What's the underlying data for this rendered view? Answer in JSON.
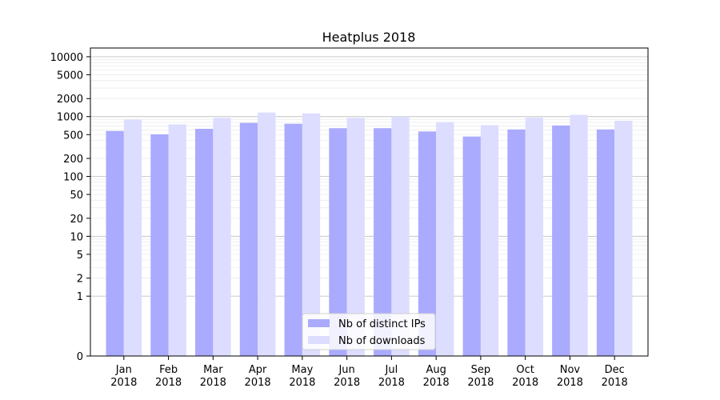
{
  "chart_data": {
    "type": "bar",
    "title": "Heatplus 2018",
    "xlabel": "",
    "ylabel": "",
    "yscale": "symlog",
    "ylim": [
      0,
      14000
    ],
    "yticks": [
      0,
      1,
      2,
      5,
      10,
      20,
      50,
      100,
      200,
      500,
      1000,
      2000,
      5000,
      10000
    ],
    "grid": "horizontal",
    "legend_position": "bottom-center",
    "categories": [
      "Jan 2018",
      "Feb 2018",
      "Mar 2018",
      "Apr 2018",
      "May 2018",
      "Jun 2018",
      "Jul 2018",
      "Aug 2018",
      "Sep 2018",
      "Oct 2018",
      "Nov 2018",
      "Dec 2018"
    ],
    "category_lines": [
      [
        "Jan",
        "2018"
      ],
      [
        "Feb",
        "2018"
      ],
      [
        "Mar",
        "2018"
      ],
      [
        "Apr",
        "2018"
      ],
      [
        "May",
        "2018"
      ],
      [
        "Jun",
        "2018"
      ],
      [
        "Jul",
        "2018"
      ],
      [
        "Aug",
        "2018"
      ],
      [
        "Sep",
        "2018"
      ],
      [
        "Oct",
        "2018"
      ],
      [
        "Nov",
        "2018"
      ],
      [
        "Dec",
        "2018"
      ]
    ],
    "series": [
      {
        "name": "Nb of distinct IPs",
        "color": "#aaaaff",
        "values": [
          575,
          505,
          625,
          785,
          760,
          640,
          640,
          565,
          465,
          610,
          710,
          610
        ]
      },
      {
        "name": "Nb of downloads",
        "color": "#ddddff",
        "values": [
          890,
          740,
          950,
          1170,
          1130,
          950,
          1000,
          810,
          720,
          960,
          1070,
          850
        ]
      }
    ]
  }
}
